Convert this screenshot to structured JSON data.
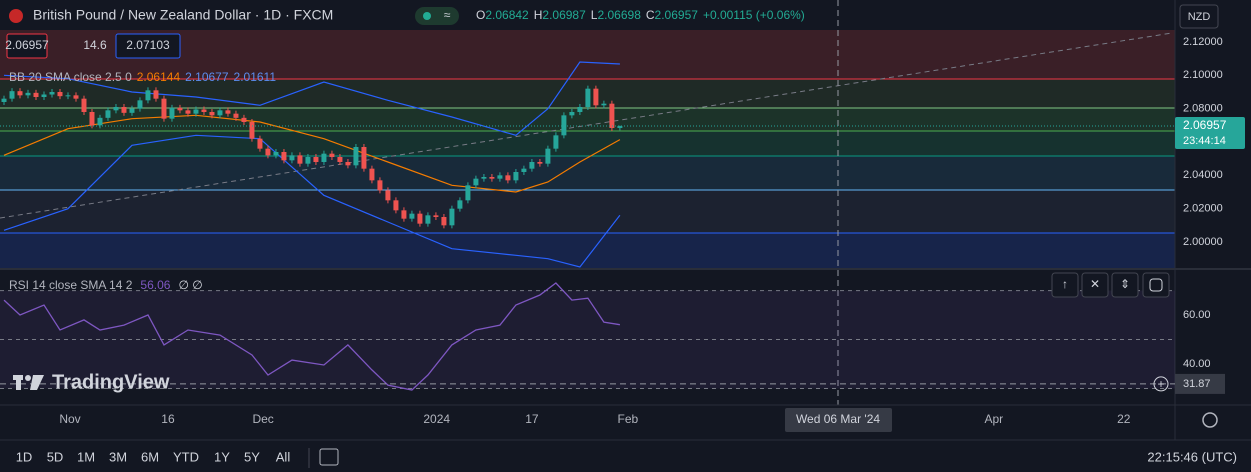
{
  "header": {
    "symbol": "British Pound / New Zealand Dollar · 1D · FXCM",
    "ohlc_labels": [
      "O",
      "H",
      "L",
      "C"
    ],
    "change": "+0.00115 (+0.06%)"
  },
  "quote": {
    "bid": 2.06957,
    "spread": 14.6,
    "ask": 2.07103
  },
  "currency": "NZD",
  "watermark": "TradingView",
  "crosshair_date": "Wed 06 Mar '24",
  "timeframes": [
    "1D",
    "5D",
    "1M",
    "3M",
    "6M",
    "YTD",
    "1Y",
    "5Y",
    "All"
  ],
  "clock": "22:15:46 (UTC)",
  "chart_data": [
    {
      "type": "candlestick",
      "up_color": "#26a69a",
      "down_color": "#ef5350",
      "x": [
        0,
        1,
        2,
        3,
        4,
        5,
        6,
        7,
        8,
        9,
        10,
        11,
        12,
        13,
        14,
        15,
        16,
        17,
        18,
        19,
        20,
        21,
        22,
        23,
        24,
        25,
        26,
        27,
        28,
        29,
        30,
        31,
        32,
        33,
        34,
        35,
        36,
        37,
        38,
        39,
        40,
        41,
        42,
        43,
        44,
        45,
        46,
        47,
        48,
        49,
        50,
        51,
        52,
        53,
        54,
        55,
        56,
        57,
        58,
        59,
        60,
        61,
        62,
        63,
        64,
        65,
        66,
        67,
        68,
        69,
        70,
        71,
        72,
        73,
        74,
        75,
        76,
        77
      ],
      "open": [
        2.084,
        2.086,
        2.0905,
        2.088,
        2.0895,
        2.087,
        2.0885,
        2.09,
        2.0875,
        2.088,
        2.086,
        2.078,
        2.07,
        2.0745,
        2.079,
        2.081,
        2.0775,
        2.08,
        2.085,
        2.091,
        2.086,
        2.074,
        2.0805,
        2.079,
        2.077,
        2.0795,
        2.078,
        2.076,
        2.079,
        2.077,
        2.0745,
        2.072,
        2.062,
        2.056,
        2.052,
        2.054,
        2.049,
        2.052,
        2.047,
        2.051,
        2.048,
        2.053,
        2.051,
        2.048,
        2.046,
        2.057,
        2.044,
        2.037,
        2.031,
        2.025,
        2.019,
        2.014,
        2.017,
        2.011,
        2.016,
        2.015,
        2.01,
        2.02,
        2.025,
        2.034,
        2.038,
        2.039,
        2.038,
        2.04,
        2.037,
        2.042,
        2.044,
        2.048,
        2.047,
        2.056,
        2.064,
        2.076,
        2.078,
        2.081,
        2.092,
        2.082,
        2.083,
        2.06842
      ],
      "high": [
        2.0878,
        2.0923,
        2.0923,
        2.0913,
        2.0913,
        2.0903,
        2.0918,
        2.0918,
        2.0898,
        2.0898,
        2.0878,
        2.0798,
        2.0763,
        2.0808,
        2.0828,
        2.0828,
        2.0818,
        2.0868,
        2.0928,
        2.0928,
        2.0878,
        2.0823,
        2.0823,
        2.0808,
        2.0813,
        2.0813,
        2.0798,
        2.0808,
        2.0808,
        2.0788,
        2.0763,
        2.0738,
        2.0638,
        2.0578,
        2.0558,
        2.0558,
        2.0538,
        2.0538,
        2.0528,
        2.0528,
        2.0548,
        2.0548,
        2.0528,
        2.0498,
        2.0588,
        2.0588,
        2.0458,
        2.0388,
        2.0328,
        2.0268,
        2.0208,
        2.0188,
        2.0188,
        2.0178,
        2.0178,
        2.0168,
        2.0218,
        2.0268,
        2.0358,
        2.0398,
        2.0408,
        2.0408,
        2.0418,
        2.0418,
        2.0438,
        2.0458,
        2.0498,
        2.0498,
        2.0578,
        2.0658,
        2.0778,
        2.0798,
        2.0828,
        2.0938,
        2.0938,
        2.0848,
        2.0848,
        2.06987
      ],
      "low": [
        2.0822,
        2.0842,
        2.0862,
        2.0862,
        2.0852,
        2.0852,
        2.0867,
        2.0857,
        2.0857,
        2.0842,
        2.0762,
        2.0682,
        2.0682,
        2.0727,
        2.0772,
        2.0757,
        2.0757,
        2.0782,
        2.0832,
        2.0842,
        2.0722,
        2.0722,
        2.0772,
        2.0752,
        2.0752,
        2.0762,
        2.0742,
        2.0742,
        2.0752,
        2.0727,
        2.0702,
        2.0602,
        2.0542,
        2.0502,
        2.0502,
        2.0472,
        2.0472,
        2.0452,
        2.0452,
        2.0462,
        2.0462,
        2.0492,
        2.0462,
        2.0442,
        2.0442,
        2.0422,
        2.0352,
        2.0292,
        2.0232,
        2.0172,
        2.0122,
        2.0122,
        2.0092,
        2.0092,
        2.0132,
        2.0082,
        2.0082,
        2.0182,
        2.0232,
        2.0322,
        2.0362,
        2.0362,
        2.0362,
        2.0352,
        2.0352,
        2.0402,
        2.0422,
        2.0452,
        2.0452,
        2.0542,
        2.0622,
        2.0742,
        2.0762,
        2.0792,
        2.0802,
        2.0802,
        2.0666,
        2.06698
      ],
      "close": [
        2.086,
        2.0905,
        2.088,
        2.0895,
        2.087,
        2.0885,
        2.09,
        2.0875,
        2.088,
        2.086,
        2.078,
        2.07,
        2.0745,
        2.079,
        2.081,
        2.0775,
        2.08,
        2.085,
        2.091,
        2.086,
        2.074,
        2.0805,
        2.079,
        2.077,
        2.0795,
        2.078,
        2.076,
        2.079,
        2.077,
        2.0745,
        2.072,
        2.062,
        2.056,
        2.052,
        2.054,
        2.049,
        2.052,
        2.047,
        2.051,
        2.048,
        2.053,
        2.051,
        2.048,
        2.046,
        2.057,
        2.044,
        2.037,
        2.031,
        2.025,
        2.019,
        2.014,
        2.017,
        2.011,
        2.016,
        2.015,
        2.01,
        2.02,
        2.025,
        2.034,
        2.038,
        2.039,
        2.038,
        2.04,
        2.037,
        2.042,
        2.044,
        2.048,
        2.047,
        2.056,
        2.064,
        2.076,
        2.078,
        2.081,
        2.092,
        2.082,
        2.083,
        2.06842,
        2.06957
      ],
      "last_time": "23:44:14",
      "xlim": [
        -0.5,
        146.4
      ],
      "xticks": [
        {
          "value": 8.25,
          "label": "Nov"
        },
        {
          "value": 20.5,
          "label": "16"
        },
        {
          "value": 32.4,
          "label": "Dec"
        },
        {
          "value": 54.1,
          "label": "2024"
        },
        {
          "value": 66,
          "label": "17"
        },
        {
          "value": 78,
          "label": "Feb"
        },
        {
          "value": 123.75,
          "label": "Apr"
        },
        {
          "value": 140,
          "label": "22"
        }
      ],
      "ylim": [
        1.9844,
        2.1452
      ],
      "yticks": [
        {
          "value": 2.0,
          "label": "2.00000"
        },
        {
          "value": 2.02,
          "label": "2.02000"
        },
        {
          "value": 2.04,
          "label": "2.04000"
        },
        {
          "value": 2.08,
          "label": "2.08000"
        },
        {
          "value": 2.1,
          "label": "2.10000"
        },
        {
          "value": 2.12,
          "label": "2.12000"
        }
      ],
      "bb_label": "BB 20 SMA close 2.5 0",
      "bands": [
        {
          "color": "#f57c00",
          "x": [
            0,
            8,
            16,
            24,
            32,
            40,
            48,
            56,
            64,
            68,
            72,
            77
          ],
          "values": [
            2.052,
            2.068,
            2.074,
            2.076,
            2.072,
            2.062,
            2.048,
            2.034,
            2.03,
            2.036,
            2.048,
            2.06144
          ]
        },
        {
          "color": "#2962ff",
          "x": [
            0,
            8,
            16,
            24,
            32,
            40,
            48,
            56,
            64,
            68,
            72,
            77
          ],
          "values": [
            2.1,
            2.098,
            2.09,
            2.087,
            2.082,
            2.096,
            2.085,
            2.075,
            2.064,
            2.08,
            2.108,
            2.10677
          ]
        },
        {
          "color": "#2962ff",
          "x": [
            0,
            8,
            16,
            24,
            32,
            40,
            48,
            56,
            64,
            68,
            72,
            77
          ],
          "values": [
            2.007,
            2.02,
            2.058,
            2.064,
            2.062,
            2.028,
            2.012,
            1.996,
            1.992,
            1.99,
            1.985,
            2.01611
          ]
        }
      ]
    },
    {
      "type": "line",
      "label": "RSI 14 close SMA 14 2",
      "legend_suffix": "∅ ∅",
      "color": "#7e57c2",
      "x": [
        0,
        2,
        5,
        7,
        10,
        12,
        15,
        18,
        20,
        23,
        27,
        31,
        33,
        36,
        40,
        43,
        46,
        48,
        51,
        53,
        56,
        59,
        62,
        64,
        67,
        69,
        71,
        73,
        75,
        77
      ],
      "values": [
        66.1,
        60,
        64.1,
        53.9,
        58,
        53.9,
        55.9,
        60,
        47.8,
        53.9,
        51.8,
        43.7,
        35.5,
        41.6,
        39.6,
        47.8,
        37.6,
        31.4,
        29.4,
        35.5,
        47.8,
        53.9,
        55.9,
        64.1,
        68.2,
        73.1,
        66.1,
        66.9,
        57.1,
        56.06
      ],
      "ylim": [
        25.3,
        78.4
      ],
      "yticks": [
        {
          "value": 40,
          "label": "40.00"
        },
        {
          "value": 60,
          "label": "60.00"
        }
      ],
      "levels": [
        70,
        50,
        30
      ],
      "crosshair_value": 31.87
    }
  ]
}
